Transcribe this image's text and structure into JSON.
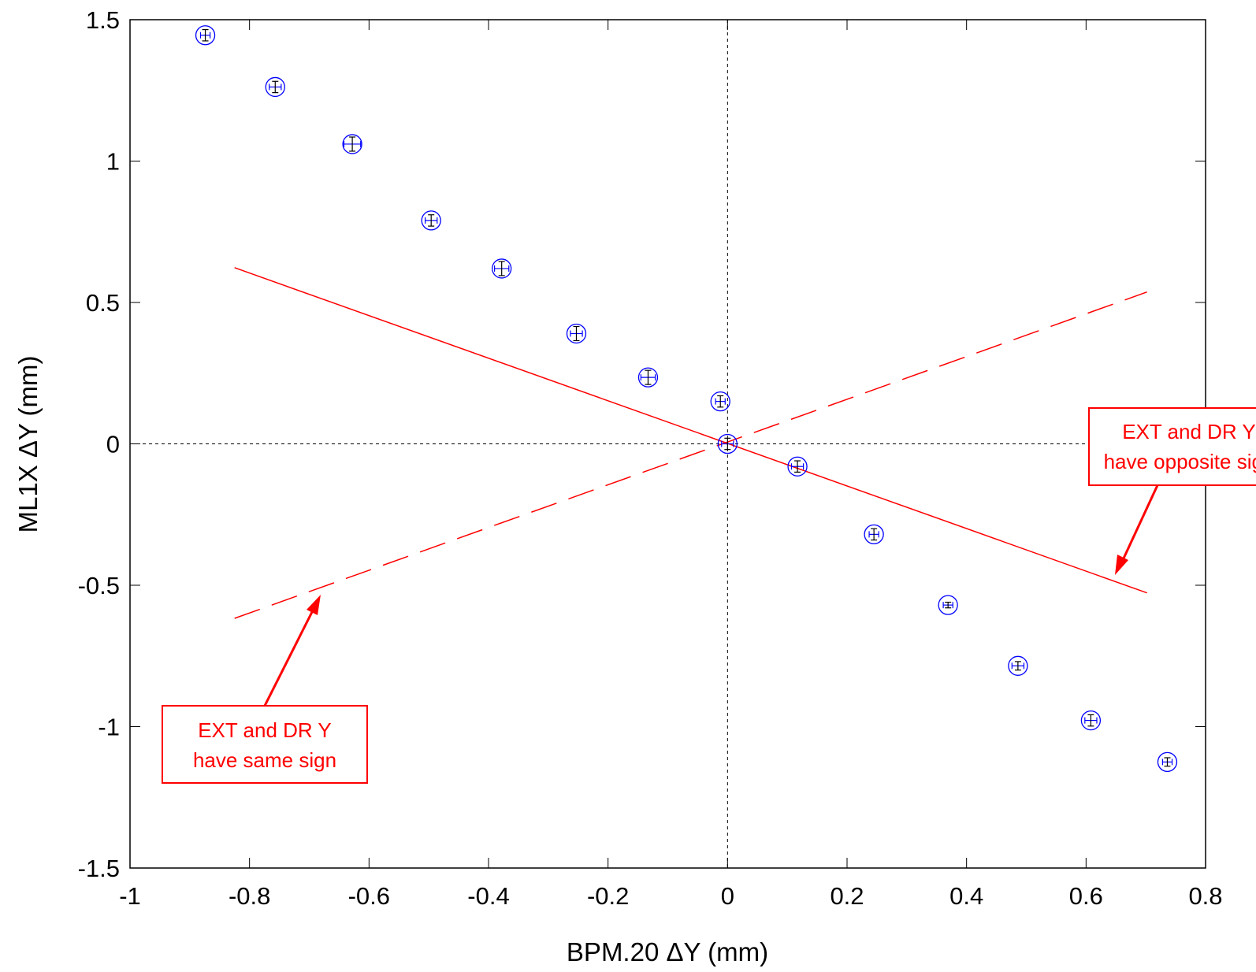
{
  "chart_data": {
    "type": "scatter",
    "xlabel": "BPM.20 ΔY (mm)",
    "ylabel": "ML1X ΔY (mm)",
    "xlim": [
      -1,
      0.8
    ],
    "ylim": [
      -1.5,
      1.5
    ],
    "xticks": [
      -1,
      -0.8,
      -0.6,
      -0.4,
      -0.2,
      0,
      0.2,
      0.4,
      0.6,
      0.8
    ],
    "xtick_labels": [
      "-1",
      "-0.8",
      "-0.6",
      "-0.4",
      "-0.2",
      "0",
      "0.2",
      "0.4",
      "0.6",
      "0.8"
    ],
    "yticks": [
      -1.5,
      -1,
      -0.5,
      0,
      0.5,
      1,
      1.5
    ],
    "ytick_labels": [
      "-1.5",
      "-1",
      "-0.5",
      "0",
      "0.5",
      "1",
      "1.5"
    ],
    "grid": false,
    "zero_lines": "dashed",
    "points": [
      {
        "x": -0.874,
        "y": 1.445,
        "xerr": 0.008,
        "yerr": 0.02
      },
      {
        "x": -0.757,
        "y": 1.262,
        "xerr": 0.01,
        "yerr": 0.02
      },
      {
        "x": -0.628,
        "y": 1.06,
        "xerr": 0.014,
        "yerr": 0.025
      },
      {
        "x": -0.496,
        "y": 0.79,
        "xerr": 0.01,
        "yerr": 0.02
      },
      {
        "x": -0.378,
        "y": 0.62,
        "xerr": 0.012,
        "yerr": 0.025
      },
      {
        "x": -0.253,
        "y": 0.39,
        "xerr": 0.01,
        "yerr": 0.025
      },
      {
        "x": -0.133,
        "y": 0.235,
        "xerr": 0.012,
        "yerr": 0.025
      },
      {
        "x": -0.012,
        "y": 0.15,
        "xerr": 0.008,
        "yerr": 0.02
      },
      {
        "x": 0.0,
        "y": 0.0,
        "xerr": 0.01,
        "yerr": 0.02
      },
      {
        "x": 0.117,
        "y": -0.08,
        "xerr": 0.01,
        "yerr": 0.02
      },
      {
        "x": 0.245,
        "y": -0.32,
        "xerr": 0.008,
        "yerr": 0.02
      },
      {
        "x": 0.369,
        "y": -0.57,
        "xerr": 0.008,
        "yerr": 0.01
      },
      {
        "x": 0.486,
        "y": -0.785,
        "xerr": 0.01,
        "yerr": 0.015
      },
      {
        "x": 0.608,
        "y": -0.978,
        "xerr": 0.01,
        "yerr": 0.02
      },
      {
        "x": 0.736,
        "y": -1.125,
        "xerr": 0.008,
        "yerr": 0.015
      }
    ],
    "lines": [
      {
        "style": "solid",
        "color": "#ff0000",
        "x": [
          -0.825,
          0.702
        ],
        "y": [
          0.623,
          -0.527
        ]
      },
      {
        "style": "dashed",
        "color": "#ff0000",
        "x": [
          -0.825,
          0.702
        ],
        "y": [
          -0.617,
          0.537
        ]
      }
    ],
    "annotations": [
      {
        "lines": [
          "EXT and DR Y",
          "have same sign"
        ],
        "color": "#ff0000"
      },
      {
        "lines": [
          "EXT and DR Y",
          "have opposite sign"
        ],
        "color": "#ff0000"
      }
    ],
    "marker_color": "#0000ff",
    "annotation_color": "#ff0000"
  }
}
